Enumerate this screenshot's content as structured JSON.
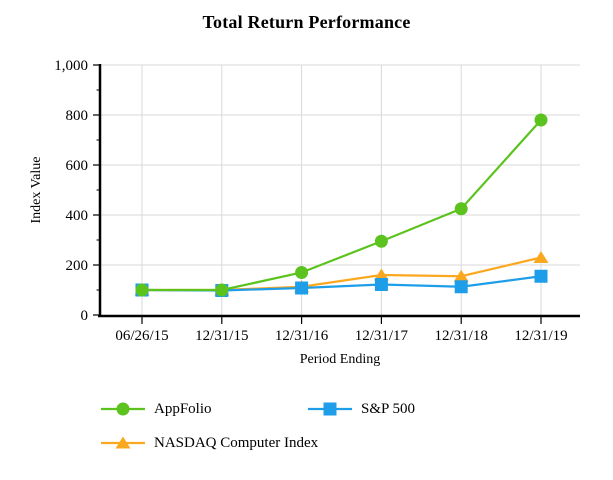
{
  "page": {
    "background": "#ffffff",
    "text_color": "#000000",
    "axis_color": "#000000",
    "grid_color": "#d9d9d9"
  },
  "chart_data": {
    "type": "line",
    "title": "Total Return Performance",
    "xlabel": "Period Ending",
    "ylabel": "Index Value",
    "categories": [
      "06/26/15",
      "12/31/15",
      "12/31/16",
      "12/31/17",
      "12/31/18",
      "12/31/19"
    ],
    "ylim": [
      0,
      1000
    ],
    "y_ticks": {
      "major": [
        0,
        200,
        400,
        600,
        800,
        1000
      ],
      "minor": [
        100,
        300,
        500,
        700,
        900
      ],
      "labels": [
        "0",
        "200",
        "400",
        "600",
        "800",
        "1,000"
      ]
    },
    "grid": true,
    "legend_position": "bottom-left",
    "series": [
      {
        "name": "AppFolio",
        "marker": "circle",
        "color": "#5CC31E",
        "values": [
          100,
          100,
          170,
          295,
          425,
          780
        ]
      },
      {
        "name": "S&P 500",
        "marker": "square",
        "color": "#1E9EE8",
        "values": [
          100,
          98,
          108,
          122,
          113,
          155
        ]
      },
      {
        "name": "NASDAQ Computer Index",
        "marker": "triangle",
        "color": "#FBA821",
        "values": [
          100,
          100,
          113,
          160,
          155,
          230
        ]
      }
    ]
  }
}
